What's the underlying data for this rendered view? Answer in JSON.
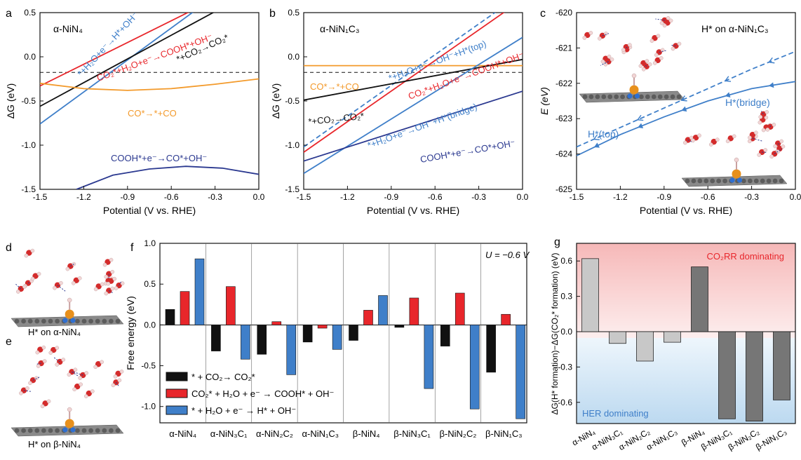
{
  "panels": {
    "a": {
      "letter": "a",
      "title": "α-NiN₄",
      "labels": {
        "h_oh": "*+H₂O+e⁻→H*+OH⁻",
        "cooh": "CO₂*+H₂O+e⁻→COOH*+OH⁻",
        "co2": "*+CO₂→CO₂*",
        "co": "CO*→*+CO",
        "cooh_co": "COOH*+e⁻→CO*+OH⁻"
      }
    },
    "b": {
      "letter": "b",
      "title": "α-NiN₁C₃",
      "labels": {
        "co": "CO*→*+CO",
        "h_top": "*+H₂O+e⁻→OH⁻+H*(top)",
        "cooh": "CO₂*+H₂O+e⁻→COOH*+OH⁻",
        "co2": "*+CO₂→CO₂*",
        "h_bridge": "*+H₂O+e⁻→OH⁻+H*(bridge)",
        "cooh_co": "COOH*+e⁻→CO*+OH⁻"
      }
    },
    "c": {
      "letter": "c",
      "title": "H* on α-NiN₁C₃",
      "ylabel": "E (eV)",
      "labels": {
        "top": "H*(top)",
        "bridge": "H*(bridge)"
      }
    },
    "d": {
      "letter": "d",
      "caption": "H* on α-NiN₄"
    },
    "e": {
      "letter": "e",
      "caption": "H* on β-NiN₄"
    },
    "f": {
      "letter": "f",
      "annotation": "U = −0.6 V",
      "ylabel": "Free energy (eV)",
      "legend": [
        "* + CO₂→ CO₂*",
        "CO₂* + H₂O + e⁻ → COOH* + OH⁻",
        "* + H₂O + e⁻ → H* + OH⁻"
      ]
    },
    "g": {
      "letter": "g",
      "ylabel": "ΔG(H* formation)−ΔG(CO₂* formation) (eV)",
      "top_label": "CO₂RR dominating",
      "bottom_label": "HER dominating"
    }
  },
  "common": {
    "xlabel": "Potential (V vs. RHE)",
    "ylabel_dg": "ΔG (eV)"
  },
  "colors": {
    "black": "#111111",
    "red": "#e8262b",
    "blue": "#3f7fc9",
    "navy": "#2b3990",
    "orange": "#f39a2b",
    "gbar_light": "#c8c8c8",
    "gbar_dark": "#767676",
    "pink": "#f9c9c9",
    "lightblue": "#cfe4f5"
  },
  "chart_data": [
    {
      "panel": "a",
      "type": "line",
      "xlim": [
        -1.5,
        0.0
      ],
      "ylim": [
        -1.5,
        0.5
      ],
      "xticks": [
        "-1.5",
        "-1.2",
        "-0.9",
        "-0.6",
        "-0.3",
        "0.0"
      ],
      "yticks": [
        "-1.5",
        "-1.0",
        "-0.5",
        "0.0",
        "0.5"
      ],
      "series": [
        {
          "x": [
            -1.5,
            0.0
          ],
          "y": [
            -0.76,
            1.05
          ]
        },
        {
          "x": [
            -1.5,
            0.0
          ],
          "y": [
            -0.33,
            0.9
          ]
        },
        {
          "x": [
            -1.5,
            0.0
          ],
          "y": [
            -0.56,
            0.78
          ]
        },
        {
          "x": [
            -1.5,
            -1.2,
            -0.9,
            -0.6,
            -0.3,
            0.0
          ],
          "y": [
            -0.3,
            -0.36,
            -0.38,
            -0.36,
            -0.31,
            -0.25
          ]
        },
        {
          "x": [
            -1.25,
            -1.0,
            -0.75,
            -0.5,
            -0.25,
            0.0
          ],
          "y": [
            -1.5,
            -1.34,
            -1.27,
            -1.24,
            -1.26,
            -1.33
          ]
        }
      ]
    },
    {
      "panel": "b",
      "type": "line",
      "xlim": [
        -1.5,
        0.0
      ],
      "ylim": [
        -1.5,
        0.5
      ],
      "xticks": [
        "-1.5",
        "-1.2",
        "-0.9",
        "-0.6",
        "-0.3",
        "0.0"
      ],
      "yticks": [
        "-1.5",
        "-1.0",
        "-0.5",
        "0.0",
        "0.5"
      ],
      "series": [
        {
          "x": [
            -1.5,
            0.0
          ],
          "y": [
            -0.1,
            -0.1
          ]
        },
        {
          "x": [
            -1.5,
            0.0
          ],
          "y": [
            -1.02,
            0.72
          ]
        },
        {
          "x": [
            -1.5,
            0.0
          ],
          "y": [
            -1.08,
            0.65
          ]
        },
        {
          "x": [
            -1.5,
            0.0
          ],
          "y": [
            -0.49,
            -0.03
          ]
        },
        {
          "x": [
            -1.5,
            0.0
          ],
          "y": [
            -1.32,
            0.22
          ]
        },
        {
          "x": [
            -1.5,
            0.0
          ],
          "y": [
            -1.18,
            -0.39
          ]
        }
      ]
    },
    {
      "panel": "c",
      "type": "line",
      "xlim": [
        -1.5,
        0.0
      ],
      "ylim": [
        -625,
        -620
      ],
      "xticks": [
        "-1.5",
        "-1.2",
        "-0.9",
        "-0.6",
        "-0.3",
        "0.0"
      ],
      "yticks": [
        "-625",
        "-624",
        "-623",
        "-622",
        "-621",
        "-620"
      ],
      "series": [
        {
          "x": [
            -1.5,
            -1.2,
            -0.9,
            -0.6,
            -0.3,
            0.0
          ],
          "y": [
            -623.8,
            -623.25,
            -622.7,
            -622.15,
            -621.6,
            -621.1
          ]
        },
        {
          "x": [
            -1.5,
            -1.2,
            -0.9,
            -0.6,
            -0.3,
            0.0
          ],
          "y": [
            -624.05,
            -623.45,
            -622.95,
            -622.5,
            -622.15,
            -621.95
          ]
        }
      ]
    },
    {
      "panel": "f",
      "type": "bar",
      "ylim": [
        -1.2,
        1.0
      ],
      "yticks": [
        "-1.0",
        "-0.5",
        "0.0",
        "0.5",
        "1.0"
      ],
      "categories": [
        "α-NiN₄",
        "α-NiN₃C₁",
        "α-NiN₂C₂",
        "α-NiN₁C₃",
        "β-NiN₄",
        "β-NiN₃C₁",
        "β-NiN₂C₂",
        "β-NiN₁C₃"
      ],
      "series": [
        {
          "values": [
            0.19,
            -0.32,
            -0.36,
            -0.21,
            -0.19,
            -0.03,
            -0.26,
            -0.58
          ]
        },
        {
          "values": [
            0.41,
            0.47,
            0.04,
            -0.04,
            0.18,
            0.33,
            0.39,
            0.13
          ]
        },
        {
          "values": [
            0.81,
            -0.42,
            -0.61,
            -0.3,
            0.36,
            -0.78,
            -1.03,
            -1.15
          ]
        }
      ]
    },
    {
      "panel": "g",
      "type": "bar",
      "ylim": [
        -0.78,
        0.75
      ],
      "yticks": [
        "-0.6",
        "-0.3",
        "0.0",
        "0.3",
        "0.6"
      ],
      "categories": [
        "α-NiN₄",
        "α-NiN₃C₁",
        "α-NiN₂C₂",
        "α-NiN₁C₃",
        "β-NiN₄",
        "β-NiN₃C₁",
        "β-NiN₂C₂",
        "β-NiN₁C₃"
      ],
      "values": [
        0.62,
        -0.1,
        -0.25,
        -0.09,
        0.55,
        -0.74,
        -0.76,
        -0.58
      ]
    }
  ]
}
